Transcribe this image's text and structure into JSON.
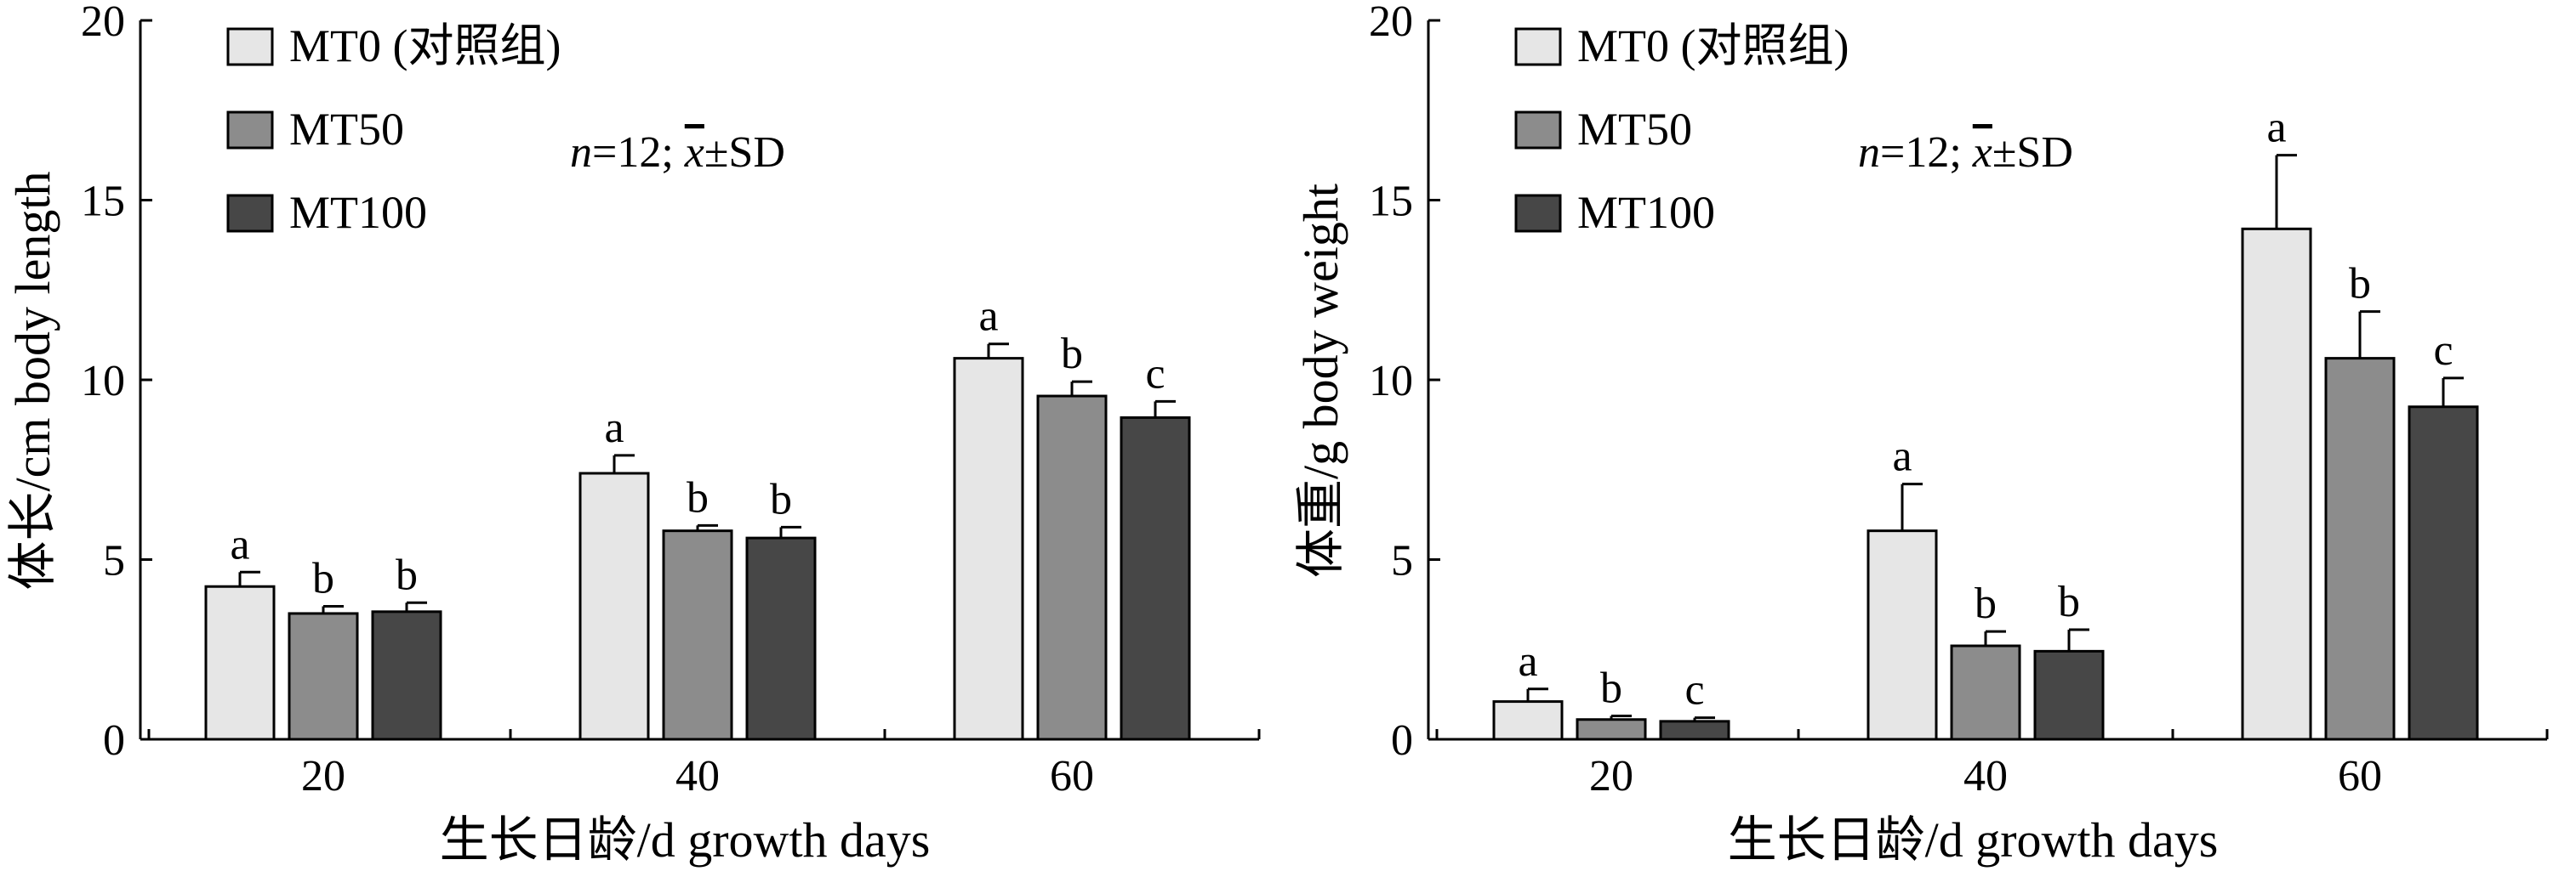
{
  "chart_data": [
    {
      "type": "bar",
      "categories": [
        "20",
        "40",
        "60"
      ],
      "xlabel": "生长日龄/d growth days",
      "ylabel": "体长/cm body length",
      "ylim": [
        0,
        20
      ],
      "yticks": [
        "0",
        "5",
        "10",
        "15",
        "20"
      ],
      "grid": false,
      "legend_position": "top-left",
      "annotation": {
        "n_part": "n",
        "rest": "=12; ",
        "mean": "x",
        "sd": "±SD"
      },
      "series": [
        {
          "name": "MT0 (对照组)",
          "color": "#e6e6e6",
          "values": [
            4.25,
            7.4,
            10.6
          ],
          "errors": [
            0.4,
            0.5,
            0.4
          ],
          "labels": [
            "a",
            "a",
            "a"
          ]
        },
        {
          "name": "MT50",
          "color": "#8c8c8c",
          "values": [
            3.5,
            5.8,
            9.55
          ],
          "errors": [
            0.2,
            0.15,
            0.4
          ],
          "labels": [
            "b",
            "b",
            "b"
          ]
        },
        {
          "name": "MT100",
          "color": "#474747",
          "values": [
            3.55,
            5.6,
            8.95
          ],
          "errors": [
            0.25,
            0.3,
            0.45
          ],
          "labels": [
            "b",
            "b",
            "c"
          ]
        }
      ]
    },
    {
      "type": "bar",
      "categories": [
        "20",
        "40",
        "60"
      ],
      "xlabel": "生长日龄/d growth days",
      "ylabel": "体重/g body weight",
      "ylim": [
        0,
        20
      ],
      "yticks": [
        "0",
        "5",
        "10",
        "15",
        "20"
      ],
      "grid": false,
      "legend_position": "top-left",
      "annotation": {
        "n_part": "n",
        "rest": "=12; ",
        "mean": "x",
        "sd": "±SD"
      },
      "series": [
        {
          "name": "MT0 (对照组)",
          "color": "#e6e6e6",
          "values": [
            1.05,
            5.8,
            14.2
          ],
          "errors": [
            0.35,
            1.3,
            2.05
          ],
          "labels": [
            "a",
            "a",
            "a"
          ]
        },
        {
          "name": "MT50",
          "color": "#8c8c8c",
          "values": [
            0.55,
            2.6,
            10.6
          ],
          "errors": [
            0.1,
            0.4,
            1.3
          ],
          "labels": [
            "b",
            "b",
            "b"
          ]
        },
        {
          "name": "MT100",
          "color": "#474747",
          "values": [
            0.5,
            2.45,
            9.25
          ],
          "errors": [
            0.1,
            0.6,
            0.8
          ],
          "labels": [
            "c",
            "b",
            "c"
          ]
        }
      ]
    }
  ]
}
